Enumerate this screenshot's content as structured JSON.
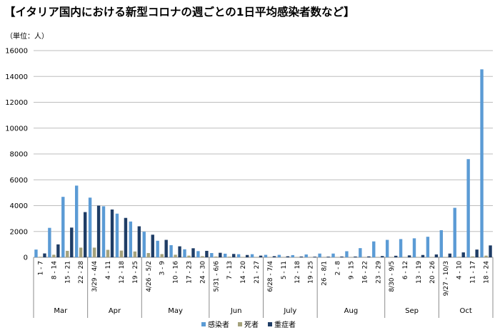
{
  "chart_data": {
    "type": "bar",
    "title": "【イタリア国内における新型コロナの週ごとの1日平均感染者数など】",
    "unit_label": "（単位：人）",
    "ylim": [
      0,
      16000
    ],
    "yticks": [
      "0",
      "2000",
      "4000",
      "6000",
      "8000",
      "10000",
      "12000",
      "14000",
      "16000"
    ],
    "grid": true,
    "legend_position": "bottom-center",
    "categories": [
      "1 - 7",
      "8 - 14",
      "15 - 21",
      "22 - 28",
      "3/29 - 4/4",
      "4 - 11",
      "12 - 18",
      "19 - 25",
      "4/26 - 5/2",
      "3 - 9",
      "10 - 16",
      "17 - 23",
      "24 - 30",
      "5/31 - 6/6",
      "7 - 13",
      "14 - 20",
      "21 - 27",
      "6/28 - 7/4",
      "5 - 11",
      "12 - 18",
      "19 - 25",
      "26 - 8/1",
      "2 - 8",
      "9 - 15",
      "16 - 22",
      "23 - 29",
      "8/30 - 9/5",
      "6 - 12",
      "13 - 19",
      "20 - 26",
      "9/27 - 10/3",
      "4 - 10",
      "11 - 17",
      "18 - 24"
    ],
    "month_groups": [
      {
        "label": "Mar",
        "count": 4
      },
      {
        "label": "Apr",
        "count": 4
      },
      {
        "label": "May",
        "count": 5
      },
      {
        "label": "Jun",
        "count": 4
      },
      {
        "label": "July",
        "count": 4
      },
      {
        "label": "Aug",
        "count": 5
      },
      {
        "label": "Sep",
        "count": 4
      },
      {
        "label": "Oct",
        "count": 4
      }
    ],
    "series": [
      {
        "name": "感染者",
        "color": "#5b9bd5",
        "values": [
          600,
          2280,
          4680,
          5550,
          4620,
          3950,
          3380,
          2770,
          1980,
          1280,
          940,
          620,
          480,
          330,
          280,
          240,
          240,
          190,
          190,
          170,
          220,
          290,
          290,
          470,
          710,
          1230,
          1350,
          1410,
          1470,
          1590,
          2100,
          3830,
          7600,
          14550
        ]
      },
      {
        "name": "死者",
        "color": "#a5a27c",
        "values": [
          40,
          200,
          500,
          750,
          750,
          580,
          520,
          450,
          330,
          250,
          200,
          130,
          90,
          60,
          50,
          30,
          20,
          20,
          15,
          10,
          10,
          10,
          10,
          10,
          10,
          10,
          10,
          15,
          20,
          25,
          30,
          40,
          70,
          130
        ]
      },
      {
        "name": "重症者",
        "color": "#1f3d66",
        "values": [
          300,
          1000,
          2300,
          3500,
          4000,
          3700,
          3050,
          2400,
          1750,
          1350,
          850,
          700,
          500,
          350,
          260,
          180,
          130,
          90,
          80,
          60,
          50,
          50,
          60,
          60,
          70,
          100,
          120,
          150,
          180,
          220,
          290,
          380,
          600,
          920
        ]
      }
    ]
  }
}
